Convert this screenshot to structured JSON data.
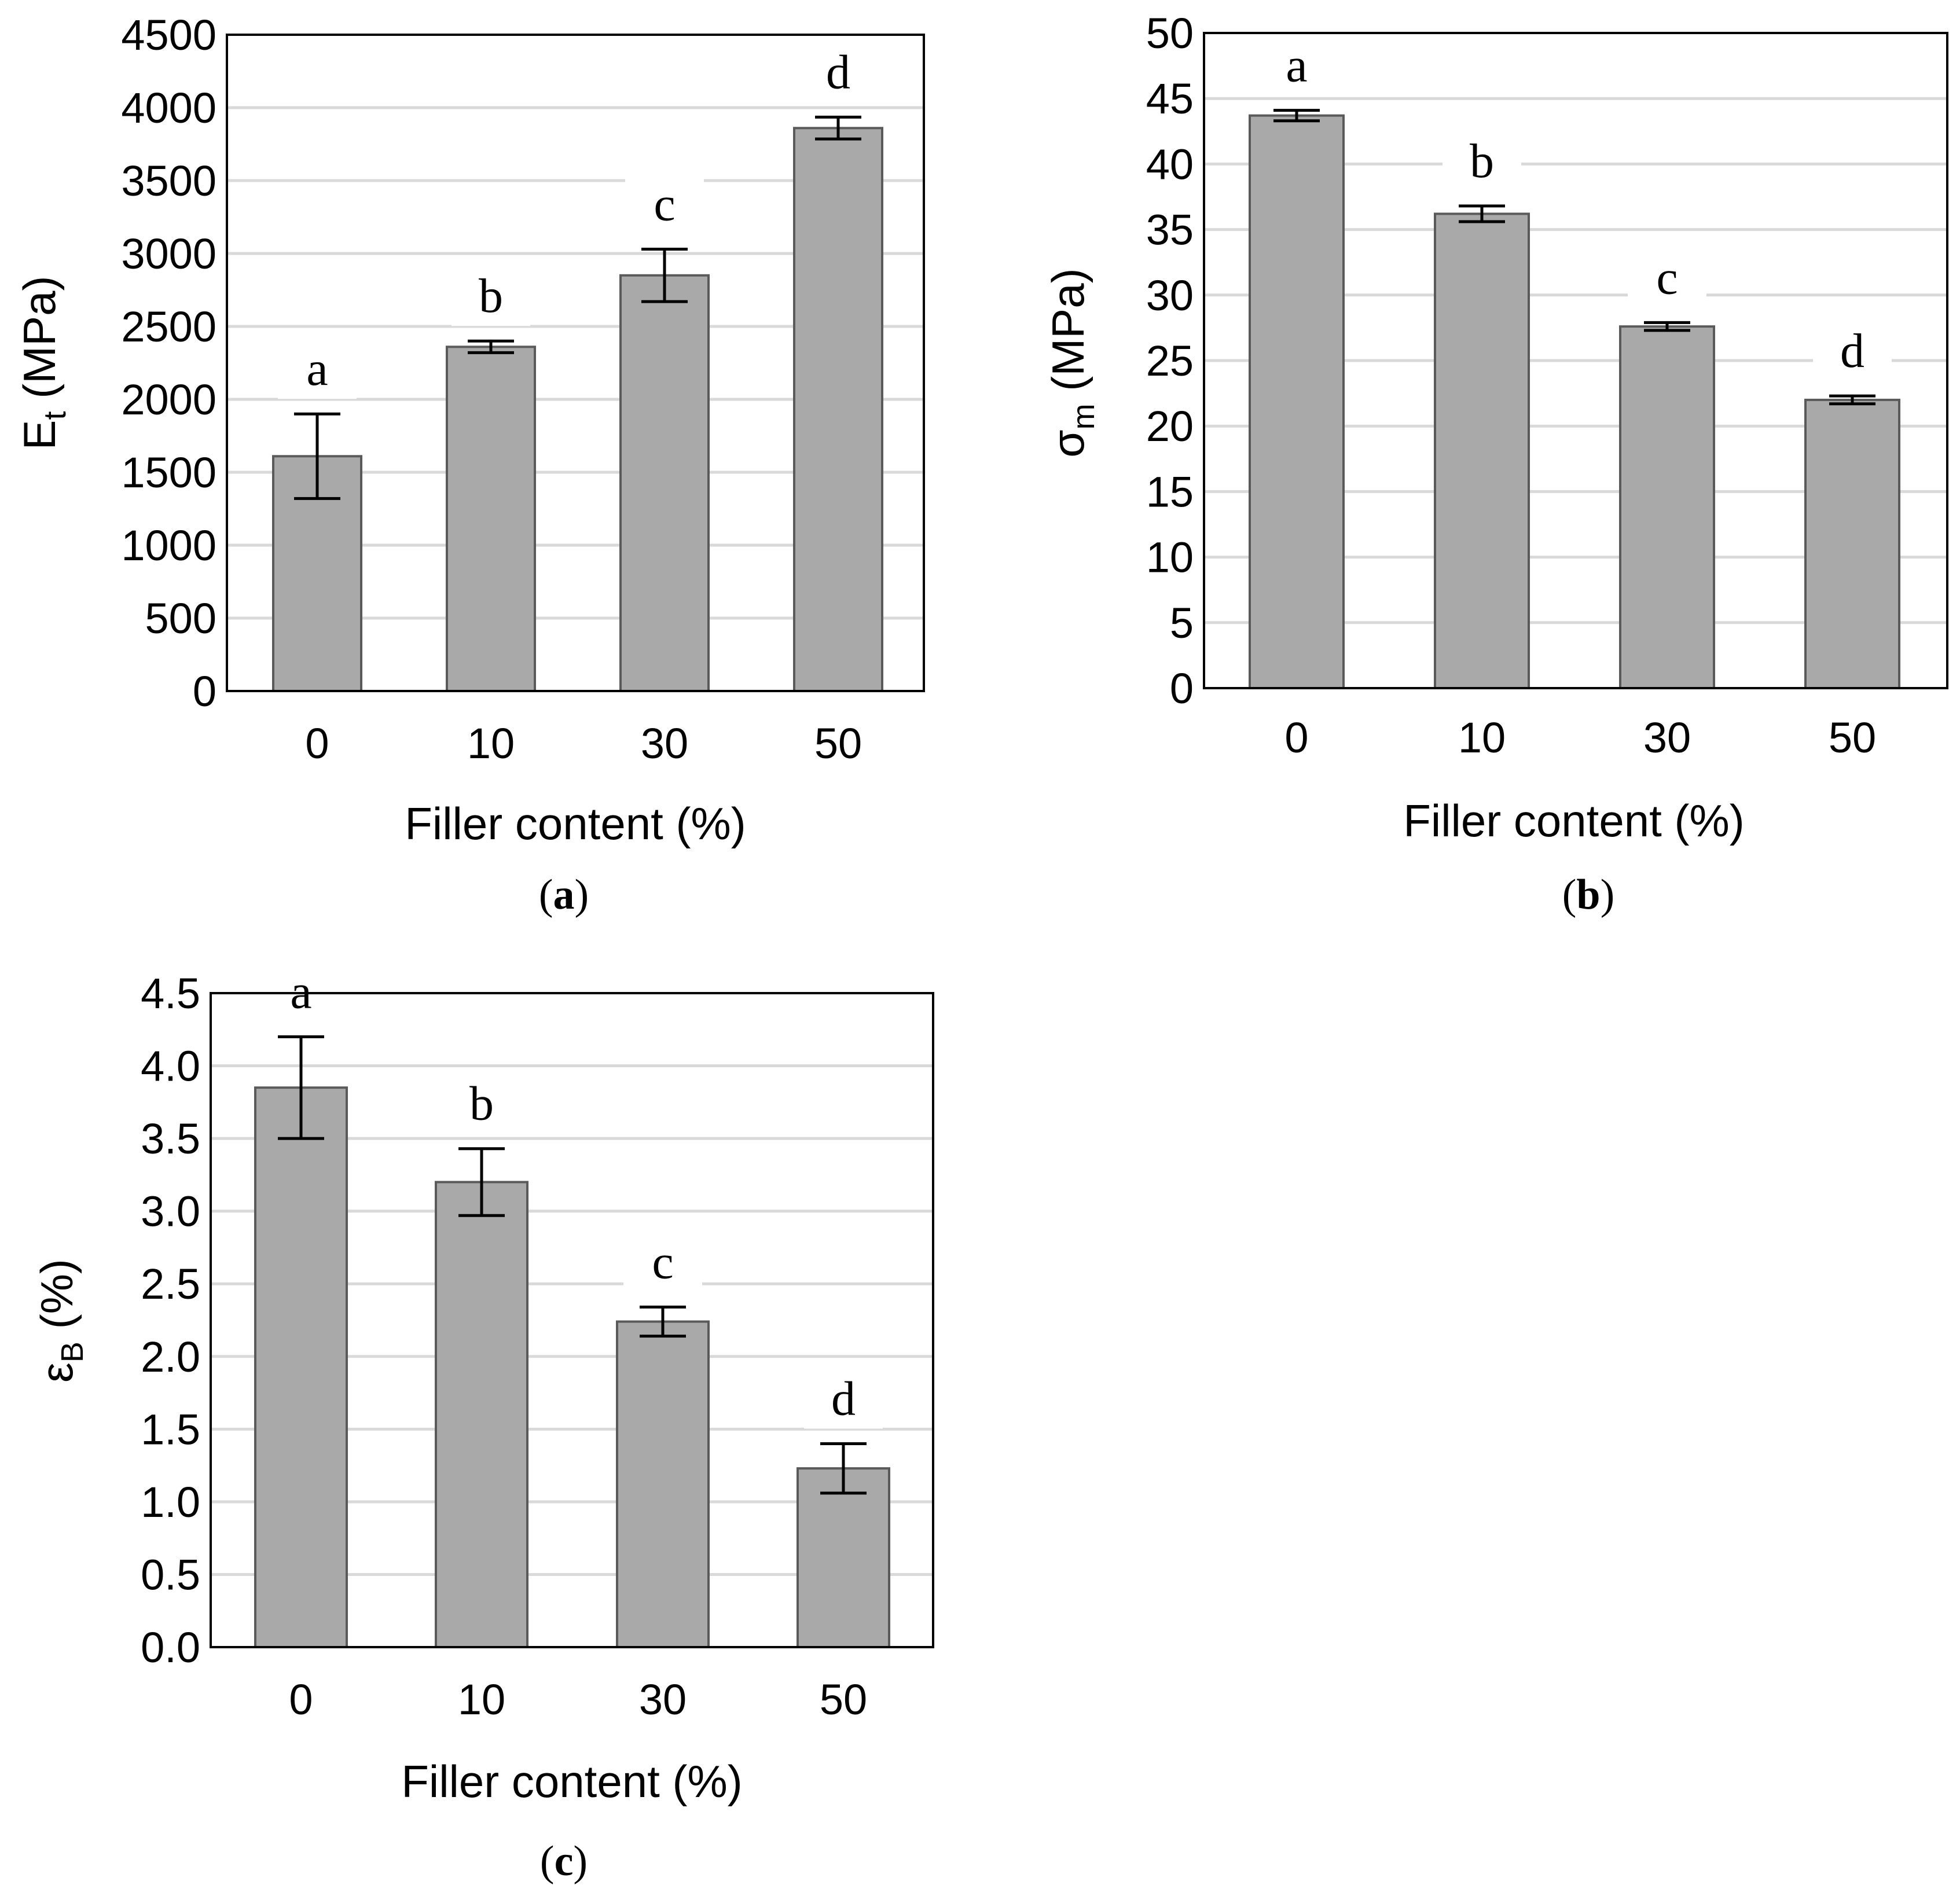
{
  "chart_data": [
    {
      "panel": "(a)",
      "panel_letter": "a",
      "type": "bar",
      "categories": [
        "0",
        "10",
        "30",
        "50"
      ],
      "values": [
        1610,
        2360,
        2850,
        3860
      ],
      "errors": [
        290,
        40,
        180,
        75
      ],
      "significance": [
        "a",
        "b",
        "c",
        "d"
      ],
      "xlabel": "Filler content (%)",
      "ylabel_main": "E",
      "ylabel_sub": "t",
      "ylabel_unit": " (MPa)",
      "ylim": [
        0,
        4500
      ],
      "yticks": [
        "0",
        "500",
        "1000",
        "1500",
        "2000",
        "2500",
        "3000",
        "3500",
        "4000",
        "4500"
      ],
      "bar_color": "#a9a9a9",
      "grid": true
    },
    {
      "panel": "(b)",
      "panel_letter": "b",
      "type": "bar",
      "categories": [
        "0",
        "10",
        "30",
        "50"
      ],
      "values": [
        43.7,
        36.2,
        27.6,
        22.0
      ],
      "errors": [
        0.4,
        0.6,
        0.3,
        0.3
      ],
      "significance": [
        "a",
        "b",
        "c",
        "d"
      ],
      "xlabel": "Filler content (%)",
      "ylabel_main": "σ",
      "ylabel_sub": "m",
      "ylabel_unit": " (MPa)",
      "ylim": [
        0,
        50
      ],
      "yticks": [
        "0",
        "5",
        "10",
        "15",
        "20",
        "25",
        "30",
        "35",
        "40",
        "45",
        "50"
      ],
      "bar_color": "#a9a9a9",
      "grid": true
    },
    {
      "panel": "(c)",
      "panel_letter": "c",
      "type": "bar",
      "categories": [
        "0",
        "10",
        "30",
        "50"
      ],
      "values": [
        3.85,
        3.2,
        2.24,
        1.23
      ],
      "errors": [
        0.35,
        0.23,
        0.1,
        0.17
      ],
      "significance": [
        "a",
        "b",
        "c",
        "d"
      ],
      "xlabel": "Filler content (%)",
      "ylabel_main": "ε",
      "ylabel_sub": "B",
      "ylabel_unit": " (%)",
      "ylim": [
        0,
        4.5
      ],
      "yticks": [
        "0.0",
        "0.5",
        "1.0",
        "1.5",
        "2.0",
        "2.5",
        "3.0",
        "3.5",
        "4.0",
        "4.5"
      ],
      "bar_color": "#a9a9a9",
      "grid": true
    }
  ]
}
